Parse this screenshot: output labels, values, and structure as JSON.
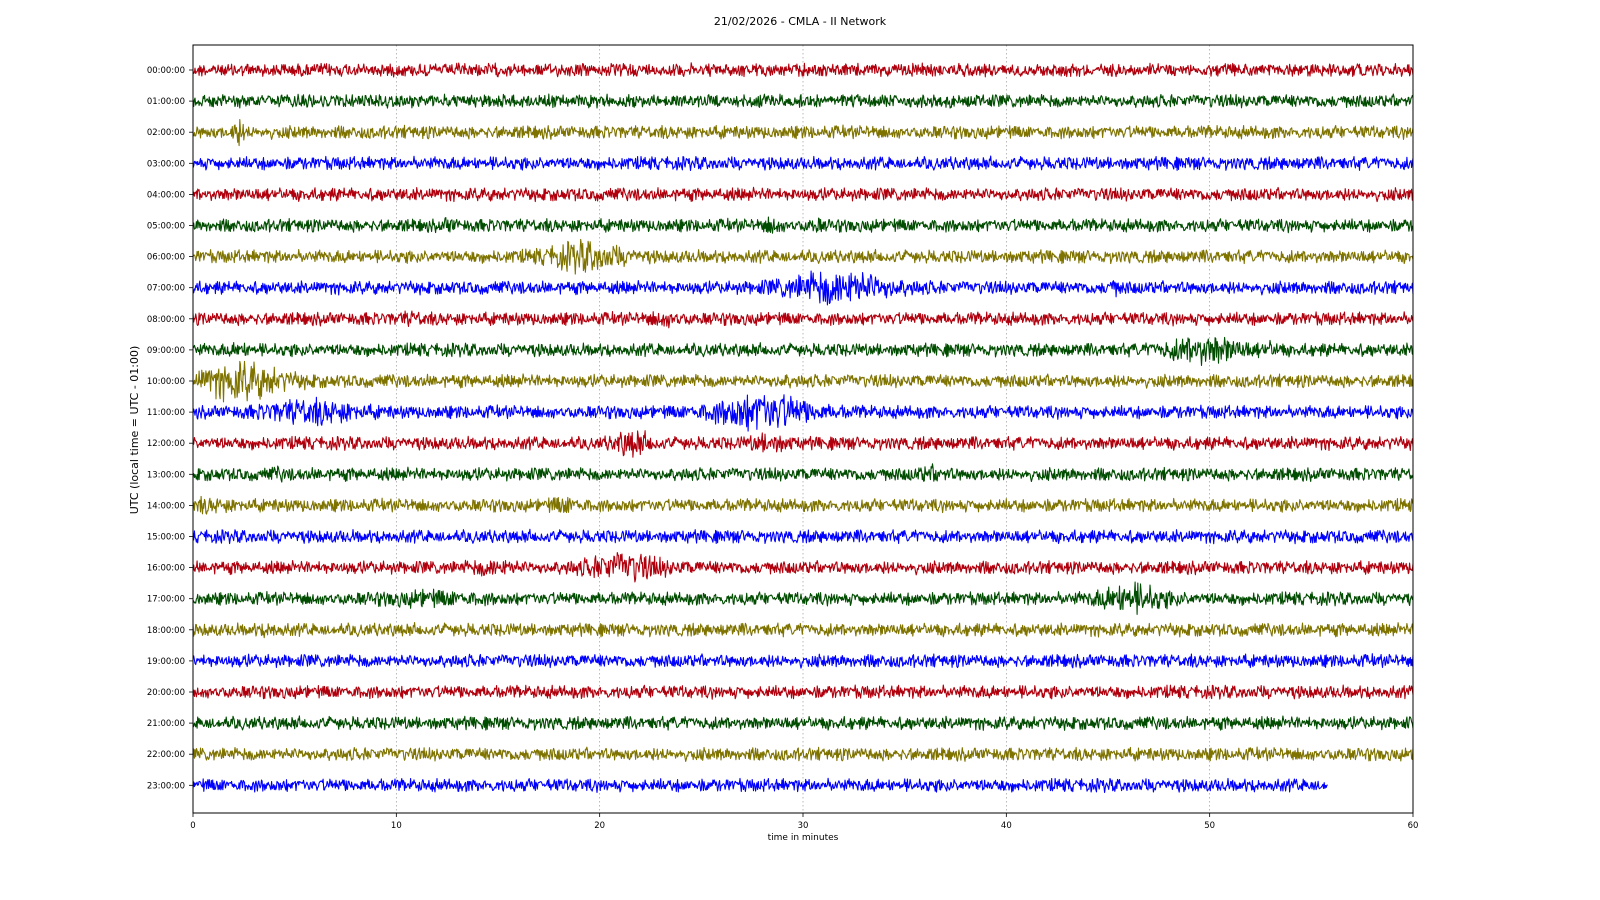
{
  "chart_data": {
    "type": "line",
    "title": "21/02/2026 - CMLA - II Network",
    "xlabel": "time in minutes",
    "ylabel": "UTC (local time = UTC - 01:00)",
    "xlim": [
      0,
      60
    ],
    "x_ticks": [
      "0",
      "10",
      "20",
      "30",
      "40",
      "50",
      "60"
    ],
    "grid": "vertical dotted at x ticks",
    "colors": [
      "#b0000d",
      "#004c00",
      "#7f7300",
      "#0000ff"
    ],
    "rows": [
      {
        "label": "00:00:00",
        "end_minute": 60,
        "events": []
      },
      {
        "label": "01:00:00",
        "end_minute": 60,
        "events": []
      },
      {
        "label": "02:00:00",
        "end_minute": 60,
        "events": [
          {
            "minute": 2.2,
            "amp": 2.4,
            "dur": 0.4
          }
        ]
      },
      {
        "label": "03:00:00",
        "end_minute": 60,
        "events": []
      },
      {
        "label": "04:00:00",
        "end_minute": 60,
        "events": []
      },
      {
        "label": "05:00:00",
        "end_minute": 60,
        "events": [
          {
            "minute": 12.6,
            "amp": 1.6,
            "dur": 0.3
          },
          {
            "minute": 28.5,
            "amp": 1.6,
            "dur": 0.5
          },
          {
            "minute": 30.6,
            "amp": 1.5,
            "dur": 0.4
          }
        ]
      },
      {
        "label": "06:00:00",
        "end_minute": 60,
        "events": [
          {
            "minute": 19.3,
            "amp": 2.6,
            "dur": 2.5
          }
        ]
      },
      {
        "label": "07:00:00",
        "end_minute": 60,
        "events": [
          {
            "minute": 31.8,
            "amp": 3.1,
            "dur": 3.5
          },
          {
            "minute": 45.3,
            "amp": 1.5,
            "dur": 0.4
          }
        ]
      },
      {
        "label": "08:00:00",
        "end_minute": 60,
        "events": [
          {
            "minute": 23.3,
            "amp": 1.5,
            "dur": 1.0
          },
          {
            "minute": 10.8,
            "amp": 1.3,
            "dur": 0.8
          }
        ]
      },
      {
        "label": "09:00:00",
        "end_minute": 60,
        "events": [
          {
            "minute": 49.8,
            "amp": 2.6,
            "dur": 2.5
          },
          {
            "minute": 53.0,
            "amp": 1.4,
            "dur": 0.6
          },
          {
            "minute": 2.3,
            "amp": 1.4,
            "dur": 0.5
          }
        ]
      },
      {
        "label": "10:00:00",
        "end_minute": 60,
        "events": [
          {
            "minute": 2.3,
            "amp": 3.2,
            "dur": 3.0
          },
          {
            "minute": 29.0,
            "amp": 1.3,
            "dur": 0.5
          }
        ]
      },
      {
        "label": "11:00:00",
        "end_minute": 60,
        "events": [
          {
            "minute": 28.0,
            "amp": 3.3,
            "dur": 3.2
          },
          {
            "minute": 5.8,
            "amp": 2.2,
            "dur": 3.0
          }
        ]
      },
      {
        "label": "12:00:00",
        "end_minute": 60,
        "events": [
          {
            "minute": 21.6,
            "amp": 2.3,
            "dur": 1.2
          },
          {
            "minute": 28.3,
            "amp": 1.8,
            "dur": 1.2
          }
        ]
      },
      {
        "label": "13:00:00",
        "end_minute": 60,
        "events": [
          {
            "minute": 36.3,
            "amp": 1.5,
            "dur": 1.0
          },
          {
            "minute": 4.2,
            "amp": 1.3,
            "dur": 0.5
          }
        ]
      },
      {
        "label": "14:00:00",
        "end_minute": 60,
        "events": [
          {
            "minute": 18.3,
            "amp": 1.6,
            "dur": 1.0
          },
          {
            "minute": 0.8,
            "amp": 1.4,
            "dur": 1.2
          }
        ]
      },
      {
        "label": "15:00:00",
        "end_minute": 60,
        "events": []
      },
      {
        "label": "16:00:00",
        "end_minute": 60,
        "events": [
          {
            "minute": 21.2,
            "amp": 2.5,
            "dur": 2.6
          },
          {
            "minute": 14.8,
            "amp": 1.6,
            "dur": 1.5
          }
        ]
      },
      {
        "label": "17:00:00",
        "end_minute": 60,
        "events": [
          {
            "minute": 46.2,
            "amp": 2.6,
            "dur": 2.2
          },
          {
            "minute": 11.5,
            "amp": 1.5,
            "dur": 3.0
          }
        ]
      },
      {
        "label": "18:00:00",
        "end_minute": 60,
        "events": [
          {
            "minute": 3.8,
            "amp": 1.3,
            "dur": 0.8
          }
        ]
      },
      {
        "label": "19:00:00",
        "end_minute": 60,
        "events": []
      },
      {
        "label": "20:00:00",
        "end_minute": 60,
        "events": []
      },
      {
        "label": "21:00:00",
        "end_minute": 60,
        "events": []
      },
      {
        "label": "22:00:00",
        "end_minute": 60,
        "events": []
      },
      {
        "label": "23:00:00",
        "end_minute": 55.8,
        "events": []
      }
    ]
  }
}
